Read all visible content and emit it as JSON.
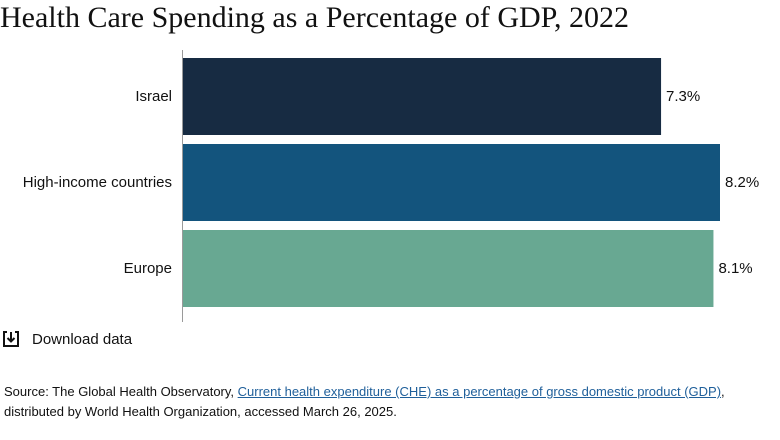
{
  "title": "Health Care Spending as a Percentage of GDP, 2022",
  "chart_data": {
    "type": "bar",
    "orientation": "horizontal",
    "categories": [
      "Israel",
      "High-income countries",
      "Europe"
    ],
    "values": [
      7.3,
      8.2,
      8.1
    ],
    "value_labels": [
      "7.3%",
      "8.2%",
      "8.1%"
    ],
    "colors": [
      "#172b42",
      "#13547d",
      "#68a892"
    ],
    "xlim": [
      0,
      8.2
    ],
    "title": "Health Care Spending as a Percentage of GDP, 2022",
    "grid": false
  },
  "download": {
    "label": "Download data",
    "icon": "download-icon"
  },
  "source": {
    "prefix": "Source: The Global Health Observatory, ",
    "link_text": "Current health expenditure (CHE) as a percentage of gross domestic product (GDP)",
    "suffix": ", distributed by World Health Organization, accessed March 26, 2025."
  }
}
